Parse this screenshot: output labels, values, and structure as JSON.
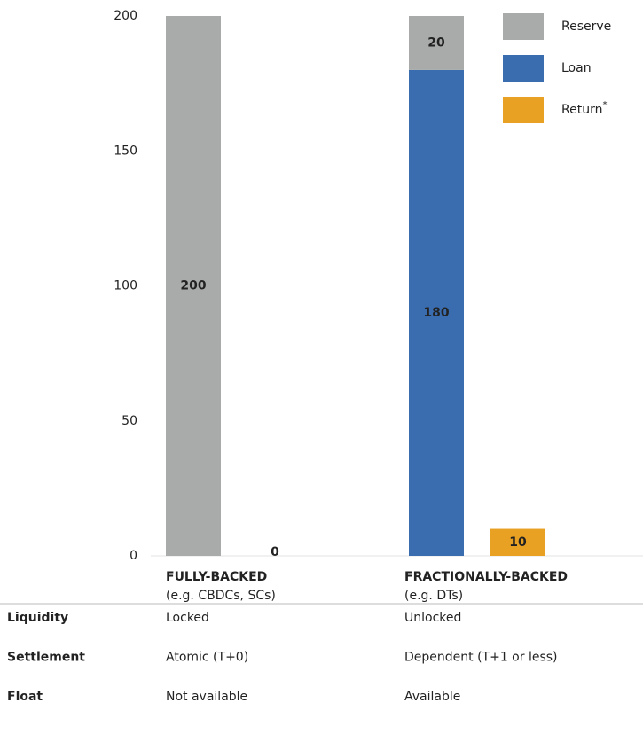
{
  "chart_data": {
    "type": "bar",
    "stacked": true,
    "categories": [
      "FULLY-BACKED",
      "FRACTIONALLY-BACKED"
    ],
    "category_notes": [
      "(e.g. CBDCs, SCs)",
      "(e.g. DTs)"
    ],
    "category_colors": [
      "#b33a3a",
      "#3a6db0"
    ],
    "series": [
      {
        "name": "Reserve",
        "color": "#a9abaa",
        "stack": "a",
        "values": [
          200,
          20
        ]
      },
      {
        "name": "Loan",
        "color": "#3a6db0",
        "stack": "a",
        "values": [
          null,
          180
        ]
      },
      {
        "name": "Return",
        "name_suffix": "*",
        "color": "#e9a123",
        "stack": "b",
        "values": [
          0,
          10
        ]
      }
    ],
    "ylim": [
      0,
      200
    ],
    "yticks": [
      0,
      50,
      100,
      150,
      200
    ],
    "legend": "top-right"
  },
  "table": {
    "rows": [
      [
        "Liquidity",
        "Locked",
        "Unlocked"
      ],
      [
        "Settlement",
        "Atomic (T+0)",
        "Dependent (T+1 or less)"
      ],
      [
        "Float",
        "Not available",
        "Available"
      ]
    ]
  }
}
